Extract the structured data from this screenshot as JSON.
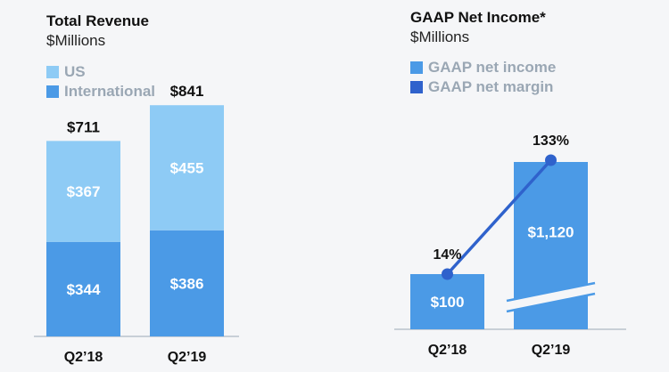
{
  "colors": {
    "us": "#8ecbf5",
    "international": "#4b9ae6",
    "net_income": "#4b9ae6",
    "net_margin": "#2f62cc",
    "axis": "#b9c2cc",
    "legend_text": "#9aa7b4"
  },
  "chart_data": [
    {
      "type": "bar",
      "stacked": true,
      "title": "Total Revenue",
      "subtitle": "$Millions",
      "categories": [
        "Q2’18",
        "Q2’19"
      ],
      "series": [
        {
          "name": "International",
          "values": [
            344,
            386
          ],
          "labels": [
            "$344",
            "$386"
          ]
        },
        {
          "name": "US",
          "values": [
            367,
            455
          ],
          "labels": [
            "$367",
            "$455"
          ]
        }
      ],
      "totals": [
        711,
        841
      ],
      "total_labels": [
        "$711",
        "$841"
      ],
      "legend": [
        "US",
        "International"
      ],
      "legend_position": "top-left",
      "ylim": [
        0,
        900
      ],
      "grid": false
    },
    {
      "type": "bar",
      "title": "GAAP Net Income*",
      "subtitle": "$Millions",
      "categories": [
        "Q2’18",
        "Q2’19"
      ],
      "series": [
        {
          "name": "GAAP net income",
          "type": "bar",
          "values": [
            100,
            1120
          ],
          "labels": [
            "$100",
            "$1,120"
          ],
          "axis_break": true
        },
        {
          "name": "GAAP net margin",
          "type": "line",
          "values": [
            14,
            133
          ],
          "unit": "%",
          "labels": [
            "14%",
            "133%"
          ]
        }
      ],
      "legend": [
        "GAAP net income",
        "GAAP net margin"
      ],
      "legend_position": "top-left",
      "grid": false
    }
  ]
}
